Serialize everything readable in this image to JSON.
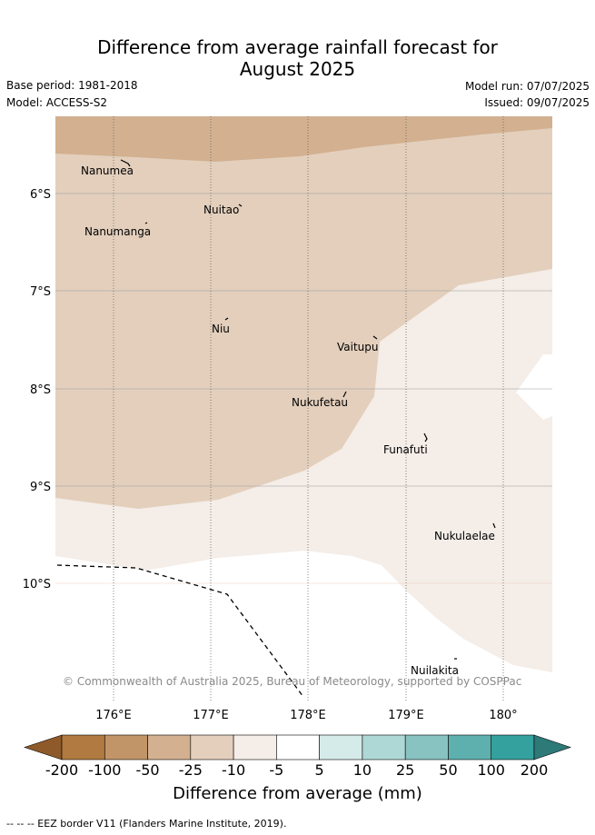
{
  "title_line1": "Difference from average rainfall forecast for",
  "title_line2": "August 2025",
  "base_period": "Base period: 1981-2018",
  "model": "Model: ACCESS-S2",
  "model_run": "Model run: 07/07/2025",
  "issued": "Issued: 09/07/2025",
  "copyright": "© Commonwealth of Australia 2025, Bureau of Meteorology, supported by COSPPac",
  "lat_labels": [
    "6°S",
    "7°S",
    "8°S",
    "9°S",
    "10°S"
  ],
  "lon_labels": [
    "176°E",
    "177°E",
    "178°E",
    "179°E",
    "180°"
  ],
  "islands": [
    "Nanumea",
    "Nuitao",
    "Nanumanga",
    "Niu",
    "Vaitupu",
    "Nukufetau",
    "Funafuti",
    "Nukulaelae",
    "Nuilakita"
  ],
  "colorbar": {
    "labels": [
      "-200",
      "-100",
      "-50",
      "-25",
      "-10",
      "-5",
      "5",
      "10",
      "25",
      "50",
      "100",
      "200"
    ],
    "colors": [
      "#8f5a2a",
      "#b07a40",
      "#c29568",
      "#d2b090",
      "#e3cfbc",
      "#f4ede8",
      "#ffffff",
      "#d5ebea",
      "#aed8d6",
      "#88c3c2",
      "#5eb0ae",
      "#35a19e",
      "#2d7a78"
    ],
    "title": "Difference from average (mm)"
  },
  "footer": "--  --  -- EEZ border V11 (Flanders Marine Institute, 2019)."
}
